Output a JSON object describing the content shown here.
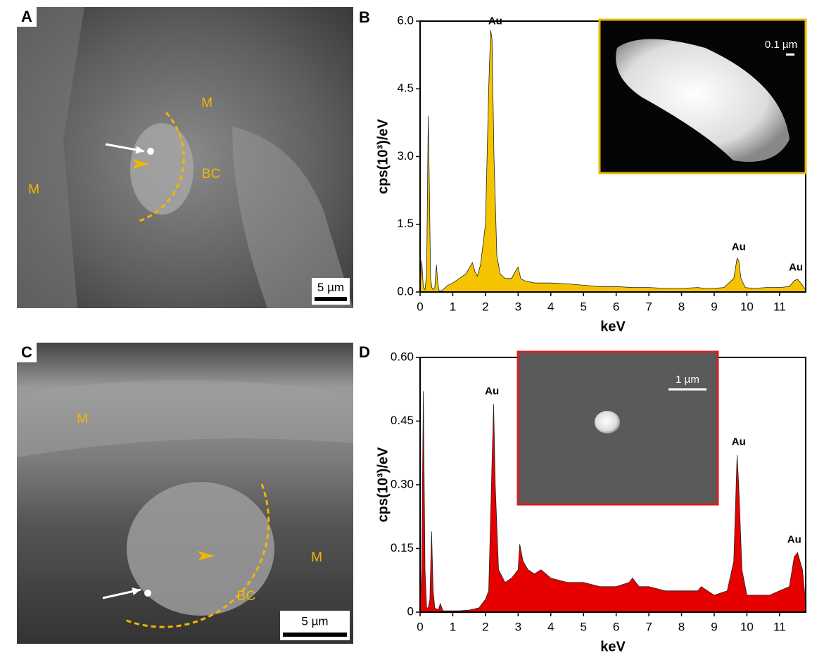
{
  "panels": [
    {
      "letter": "A",
      "labels": [
        "M",
        "M",
        "BC"
      ],
      "scale_bar": "5 µm"
    },
    {
      "letter": "C",
      "labels": [
        "M",
        "M",
        "BC"
      ],
      "scale_bar": "5 µm"
    }
  ],
  "chart_data": [
    {
      "type": "area",
      "panel": "B",
      "xlabel": "keV",
      "ylabel": "cps(10³)/eV",
      "color": "#f5c400",
      "x": [
        0,
        0.05,
        0.1,
        0.15,
        0.2,
        0.25,
        0.28,
        0.32,
        0.36,
        0.4,
        0.45,
        0.5,
        0.53,
        0.57,
        0.62,
        0.7,
        0.85,
        1.0,
        1.2,
        1.4,
        1.6,
        1.68,
        1.75,
        1.85,
        2.0,
        2.1,
        2.16,
        2.2,
        2.26,
        2.35,
        2.45,
        2.6,
        2.8,
        2.95,
        3.0,
        3.08,
        3.2,
        3.5,
        4,
        4.5,
        5,
        5.5,
        6,
        6.5,
        7,
        7.5,
        8,
        8.5,
        8.7,
        9,
        9.3,
        9.6,
        9.7,
        9.75,
        9.82,
        9.95,
        10.2,
        10.6,
        11,
        11.3,
        11.45,
        11.55,
        11.7,
        11.8
      ],
      "values": [
        0.05,
        0.7,
        0.1,
        0.05,
        0.4,
        3.9,
        2.5,
        0.3,
        0.1,
        0.05,
        0.1,
        0.6,
        0.3,
        0.05,
        0.02,
        0.05,
        0.15,
        0.2,
        0.3,
        0.4,
        0.65,
        0.45,
        0.35,
        0.6,
        1.5,
        4.5,
        5.8,
        5.6,
        3,
        0.8,
        0.4,
        0.3,
        0.3,
        0.5,
        0.55,
        0.3,
        0.25,
        0.2,
        0.2,
        0.18,
        0.15,
        0.12,
        0.12,
        0.1,
        0.1,
        0.08,
        0.08,
        0.1,
        0.08,
        0.08,
        0.1,
        0.3,
        0.75,
        0.7,
        0.3,
        0.1,
        0.08,
        0.1,
        0.1,
        0.12,
        0.25,
        0.28,
        0.15,
        0.05
      ],
      "xlim": [
        0,
        11.8
      ],
      "ylim": [
        0,
        6
      ],
      "xticks": [
        0,
        1,
        2,
        3,
        4,
        5,
        6,
        7,
        8,
        9,
        10,
        11
      ],
      "yticks": [
        {
          "value": 0,
          "label": "0.0"
        },
        1.5,
        {
          "value": 3,
          "label": "3.0"
        },
        4.5,
        {
          "value": 6,
          "label": "6.0"
        }
      ],
      "annotations": [
        {
          "text": "Au",
          "x": 2.3,
          "y": 5.85
        },
        {
          "text": "Au",
          "x": 9.75,
          "y": 0.85
        },
        {
          "text": "Au",
          "x": 11.5,
          "y": 0.4
        }
      ],
      "inset_scale": "0.1 µm",
      "inset_border": "#e6b800"
    },
    {
      "type": "area",
      "panel": "D",
      "xlabel": "keV",
      "ylabel": "cps(10³)/eV",
      "color": "#e60000",
      "x": [
        0,
        0.05,
        0.1,
        0.15,
        0.2,
        0.25,
        0.3,
        0.35,
        0.4,
        0.45,
        0.55,
        0.62,
        0.7,
        0.9,
        1.2,
        1.5,
        1.8,
        2.0,
        2.1,
        2.2,
        2.25,
        2.3,
        2.4,
        2.6,
        2.8,
        3.0,
        3.05,
        3.15,
        3.3,
        3.5,
        3.7,
        4,
        4.5,
        5,
        5.5,
        6,
        6.4,
        6.5,
        6.7,
        7,
        7.5,
        8,
        8.5,
        8.6,
        9,
        9.4,
        9.6,
        9.7,
        9.75,
        9.85,
        10.0,
        10.3,
        10.7,
        11.0,
        11.3,
        11.45,
        11.55,
        11.7,
        11.8
      ],
      "values": [
        0,
        0.1,
        0.52,
        0.1,
        0.01,
        0.01,
        0.03,
        0.19,
        0.05,
        0.01,
        0.005,
        0.02,
        0.003,
        0.003,
        0.003,
        0.005,
        0.01,
        0.03,
        0.05,
        0.35,
        0.49,
        0.3,
        0.1,
        0.07,
        0.08,
        0.1,
        0.16,
        0.12,
        0.1,
        0.09,
        0.1,
        0.08,
        0.07,
        0.07,
        0.06,
        0.06,
        0.07,
        0.08,
        0.06,
        0.06,
        0.05,
        0.05,
        0.05,
        0.06,
        0.04,
        0.05,
        0.12,
        0.37,
        0.3,
        0.1,
        0.04,
        0.04,
        0.04,
        0.05,
        0.06,
        0.13,
        0.14,
        0.1,
        0.02
      ],
      "xlim": [
        0,
        11.8
      ],
      "ylim": [
        0,
        0.6
      ],
      "xticks": [
        0,
        1,
        2,
        3,
        4,
        5,
        6,
        7,
        8,
        9,
        10,
        11
      ],
      "yticks": [
        0,
        0.15,
        {
          "value": 0.3,
          "label": "0.30"
        },
        0.45,
        {
          "value": 0.6,
          "label": "0.60"
        }
      ],
      "annotations": [
        {
          "text": "Au",
          "x": 2.2,
          "y": 0.505
        },
        {
          "text": "Au",
          "x": 9.75,
          "y": 0.385
        },
        {
          "text": "Au",
          "x": 11.45,
          "y": 0.155
        }
      ],
      "inset_scale": "1 µm",
      "inset_border": "#d42020"
    }
  ]
}
